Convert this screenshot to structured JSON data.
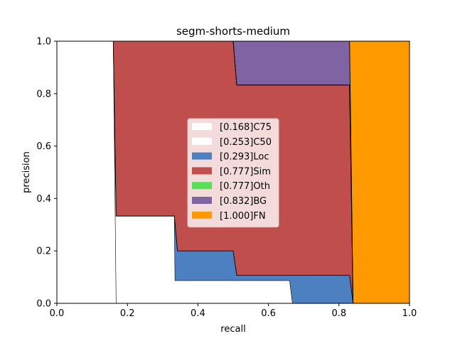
{
  "chart_data": {
    "type": "area",
    "title": "segm-shorts-medium",
    "xlabel": "recall",
    "ylabel": "precision",
    "xlim": [
      0,
      1
    ],
    "ylim": [
      0,
      1
    ],
    "xticks": [
      "0.0",
      "0.2",
      "0.4",
      "0.6",
      "0.8",
      "1.0"
    ],
    "yticks": [
      "0.0",
      "0.2",
      "0.4",
      "0.6",
      "0.8",
      "1.0"
    ],
    "grid": false,
    "legend_position": "center",
    "series": [
      {
        "name": "[0.168]C75",
        "color": "#ffffff",
        "points": [
          [
            0,
            1
          ],
          [
            0.16,
            1
          ],
          [
            0.168,
            0
          ],
          [
            1,
            0
          ]
        ]
      },
      {
        "name": "[0.253]C50",
        "color": "#ffffff",
        "points": [
          [
            0,
            1
          ],
          [
            0.16,
            1
          ],
          [
            0.168,
            0.333
          ],
          [
            0.333,
            0.333
          ],
          [
            0.335,
            0.087
          ],
          [
            0.66,
            0.087
          ],
          [
            0.668,
            0
          ],
          [
            1,
            0
          ]
        ]
      },
      {
        "name": "[0.293]Loc",
        "color": "#4c80c0",
        "points": [
          [
            0,
            1
          ],
          [
            0.16,
            1
          ],
          [
            0.168,
            0.333
          ],
          [
            0.333,
            0.333
          ],
          [
            0.342,
            0.2
          ],
          [
            0.5,
            0.2
          ],
          [
            0.51,
            0.107
          ],
          [
            0.83,
            0.107
          ],
          [
            0.84,
            0
          ],
          [
            1,
            0
          ]
        ]
      },
      {
        "name": "[0.777]Sim",
        "color": "#c04e4c",
        "points": [
          [
            0,
            1
          ],
          [
            0.5,
            1
          ],
          [
            0.51,
            0.833
          ],
          [
            0.83,
            0.833
          ],
          [
            0.84,
            0
          ],
          [
            1,
            0
          ]
        ]
      },
      {
        "name": "[0.777]Oth",
        "color": "#55e055",
        "points": [
          [
            0,
            1
          ],
          [
            0.5,
            1
          ],
          [
            0.51,
            0.833
          ],
          [
            0.83,
            0.833
          ],
          [
            0.84,
            0
          ],
          [
            1,
            0
          ]
        ]
      },
      {
        "name": "[0.832]BG",
        "color": "#8063a3",
        "points": [
          [
            0,
            1
          ],
          [
            0.83,
            1
          ],
          [
            0.84,
            0
          ],
          [
            1,
            0
          ]
        ]
      },
      {
        "name": "[1.000]FN",
        "color": "#ff9900",
        "points": [
          [
            0,
            1
          ],
          [
            1,
            1
          ],
          [
            1,
            0
          ]
        ]
      }
    ]
  }
}
